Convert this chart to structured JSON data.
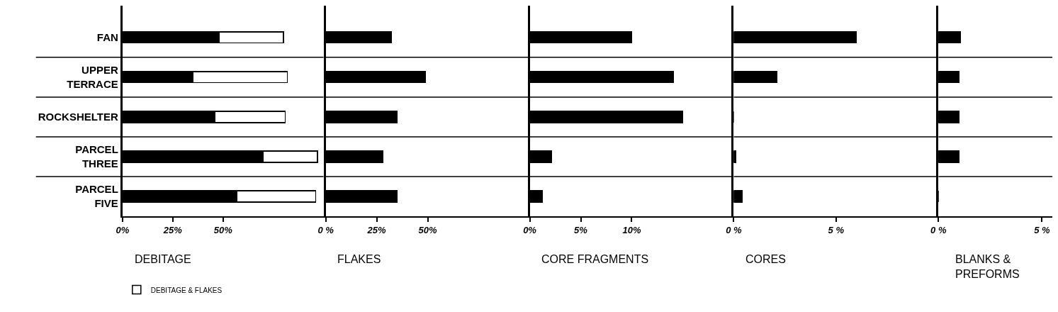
{
  "chart_data": [
    {
      "type": "bar",
      "orientation": "horizontal",
      "stacked": true,
      "title": "DEBITAGE",
      "categories": [
        "FAN",
        "UPPER\nTERRACE",
        "ROCKSHELTER",
        "PARCEL\nTHREE",
        "PARCEL\nFIVE"
      ],
      "series": [
        {
          "color": "#000000",
          "values": [
            48,
            35,
            46,
            70,
            57
          ]
        },
        {
          "name": "DEBITAGE & FLAKES",
          "color": "#ffffff",
          "values": [
            32,
            47,
            35,
            27,
            39
          ]
        }
      ],
      "xlim": [
        0,
        100
      ],
      "xticks": [
        {
          "value": 0,
          "label": "0%"
        },
        {
          "value": 25,
          "label": "25%"
        },
        {
          "value": 50,
          "label": "50%"
        }
      ],
      "grid": "y",
      "legend": "bottom"
    },
    {
      "type": "bar",
      "orientation": "horizontal",
      "title": "FLAKES",
      "categories": [
        null,
        null,
        null,
        null,
        null
      ],
      "series": [
        {
          "color": "#000000",
          "values": [
            32,
            49,
            35,
            28,
            35
          ]
        }
      ],
      "xlim": [
        0,
        100
      ],
      "xticks": [
        {
          "value": 0,
          "label": "0 %"
        },
        {
          "value": 25,
          "label": "25%"
        },
        {
          "value": 50,
          "label": "50%"
        }
      ],
      "grid": "y",
      "tick_labels": "x"
    },
    {
      "type": "bar",
      "orientation": "horizontal",
      "title": "CORE FRAGMENTS",
      "categories": [
        null,
        null,
        null,
        null,
        null
      ],
      "series": [
        {
          "color": "#000000",
          "values": [
            10,
            14.1,
            15,
            2.1,
            1.2
          ]
        }
      ],
      "xlim": [
        0,
        20
      ],
      "xticks": [
        {
          "value": 0,
          "label": "0%"
        },
        {
          "value": 5,
          "label": "5%"
        },
        {
          "value": 10,
          "label": "10%"
        }
      ],
      "grid": "y",
      "tick_labels": "x"
    },
    {
      "type": "bar",
      "orientation": "horizontal",
      "title": "CORES",
      "categories": [
        null,
        null,
        null,
        null,
        null
      ],
      "series": [
        {
          "color": "#000000",
          "values": [
            6.0,
            2.1,
            0,
            0.1,
            0.4
          ]
        }
      ],
      "xlim": [
        0,
        10
      ],
      "xticks": [
        {
          "value": 0,
          "label": "0 %"
        },
        {
          "value": 5,
          "label": "5 %"
        }
      ],
      "grid": "y",
      "tick_labels": "x"
    },
    {
      "type": "bar",
      "orientation": "horizontal",
      "title": "BLANKS &\nPREFORMS",
      "categories": [
        null,
        null,
        null,
        null,
        null
      ],
      "series": [
        {
          "color": "#000000",
          "values": [
            1.05,
            1.0,
            1.0,
            1.0,
            0
          ]
        }
      ],
      "xlim": [
        0,
        5.5
      ],
      "xticks": [
        {
          "value": 0,
          "label": "0 %"
        },
        {
          "value": 5,
          "label": "5 %"
        }
      ],
      "grid": "y",
      "tick_labels": "x"
    }
  ]
}
